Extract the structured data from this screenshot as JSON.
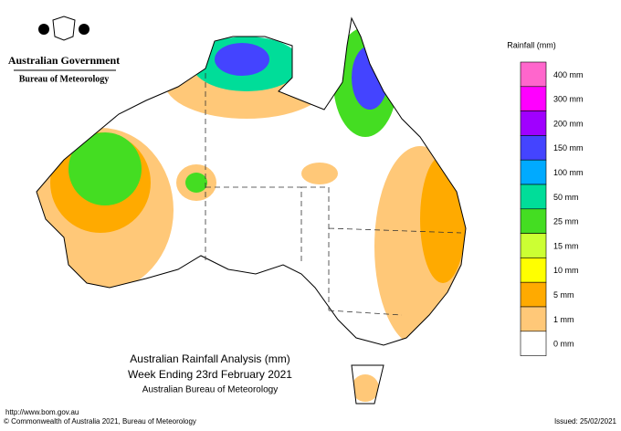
{
  "header": {
    "government": "Australian Government",
    "agency": "Bureau of Meteorology"
  },
  "legend": {
    "title": "Rainfall (mm)",
    "items": [
      {
        "label": "400 mm",
        "color": "#ff66cc"
      },
      {
        "label": "300 mm",
        "color": "#ff00ff"
      },
      {
        "label": "200 mm",
        "color": "#a000ff"
      },
      {
        "label": "150 mm",
        "color": "#4444ff"
      },
      {
        "label": "100 mm",
        "color": "#00aaff"
      },
      {
        "label": "50 mm",
        "color": "#00dd99"
      },
      {
        "label": "25 mm",
        "color": "#44dd22"
      },
      {
        "label": "15 mm",
        "color": "#ccff33"
      },
      {
        "label": "10 mm",
        "color": "#ffff00"
      },
      {
        "label": "5 mm",
        "color": "#ffaa00"
      },
      {
        "label": "1 mm",
        "color": "#ffc878"
      },
      {
        "label": "0 mm",
        "color": "#ffffff"
      }
    ]
  },
  "caption": {
    "line1": "Australian Rainfall Analysis (mm)",
    "line2": "Week Ending 23rd February 2021",
    "line3": "Australian Bureau of Meteorology"
  },
  "footer": {
    "url": "http://www.bom.gov.au",
    "copyright": "© Commonwealth of Australia 2021, Bureau of Meteorology",
    "issued": "Issued: 25/02/2021"
  }
}
